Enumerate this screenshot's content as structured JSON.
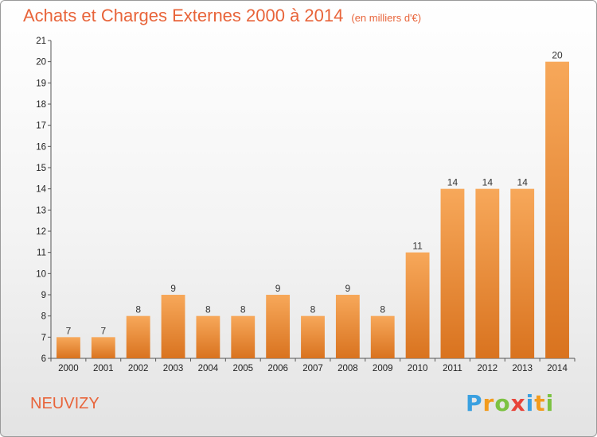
{
  "title": "Achats et Charges Externes 2000 à 2014",
  "unit": "(en milliers d'€)",
  "commune": "NEUVIZY",
  "logo": {
    "letters": [
      "P",
      "r",
      "o",
      "x",
      "i",
      "t",
      "i"
    ],
    "colors": [
      "#3aa0e0",
      "#f29b1d",
      "#7cc242",
      "#e8443a",
      "#3aa0e0",
      "#f29b1d",
      "#7cc242"
    ]
  },
  "chart_data": {
    "type": "bar",
    "categories": [
      "2000",
      "2001",
      "2002",
      "2003",
      "2004",
      "2005",
      "2006",
      "2007",
      "2008",
      "2009",
      "2010",
      "2011",
      "2012",
      "2013",
      "2014"
    ],
    "values": [
      7,
      7,
      8,
      9,
      8,
      8,
      9,
      8,
      9,
      8,
      11,
      14,
      14,
      14,
      20
    ],
    "ylim": [
      6,
      21
    ],
    "yticks": [
      6,
      7,
      8,
      9,
      10,
      11,
      12,
      13,
      14,
      15,
      16,
      17,
      18,
      19,
      20,
      21
    ],
    "bar_color": "#f0913a",
    "grid": false
  }
}
